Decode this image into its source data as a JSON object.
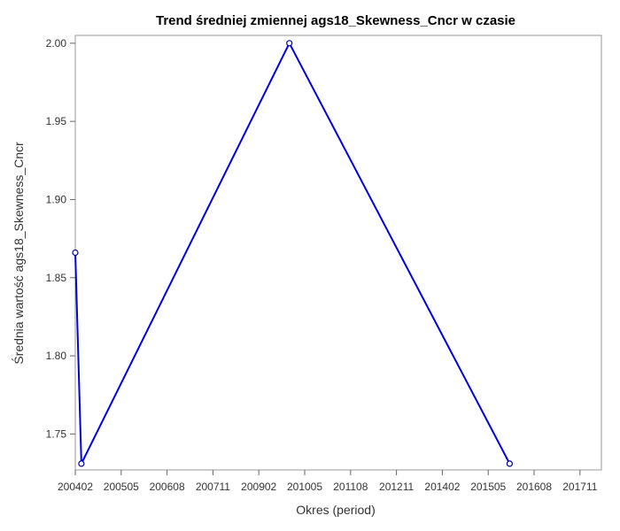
{
  "chart_data": {
    "type": "line",
    "title": "Trend średniej zmiennej ags18_Skewness_Cncr w czasie",
    "xlabel": "Okres (period)",
    "ylabel": "Średnia wartość ags18_Skewness_Cncr",
    "x_axis_kind": "yyyymm period",
    "xlim": [
      "200402",
      "201806"
    ],
    "ylim": [
      1.727,
      2.005
    ],
    "x_ticks": [
      "200402",
      "200505",
      "200608",
      "200711",
      "200902",
      "201005",
      "201108",
      "201211",
      "201402",
      "201505",
      "201608",
      "201711"
    ],
    "y_ticks": [
      "1.75",
      "1.80",
      "1.85",
      "1.90",
      "1.95",
      "2.00"
    ],
    "grid": false,
    "legend": "none",
    "series": [
      {
        "color": "#0000e0",
        "points": [
          {
            "x": "200402",
            "y": 1.866
          },
          {
            "x": "200404",
            "y": 1.731
          },
          {
            "x": "200912",
            "y": 2.0
          },
          {
            "x": "201512",
            "y": 1.731
          }
        ]
      }
    ]
  }
}
